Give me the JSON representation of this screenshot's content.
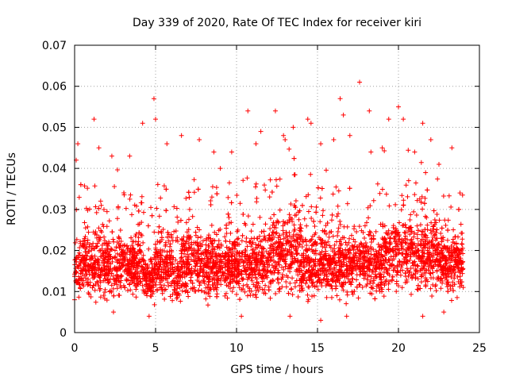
{
  "chart_data": {
    "type": "scatter",
    "title": "Day 339 of 2020, Rate Of TEC Index for receiver kiri",
    "xlabel": "GPS time / hours",
    "ylabel": "ROTI / TECUs",
    "xlim": [
      0,
      25
    ],
    "ylim": [
      0,
      0.07
    ],
    "xticks": [
      0,
      5,
      10,
      15,
      20,
      25
    ],
    "xtick_labels": [
      "0",
      "5",
      "10",
      "15",
      "20",
      "25"
    ],
    "yticks": [
      0,
      0.01,
      0.02,
      0.03,
      0.04,
      0.05,
      0.06,
      0.07
    ],
    "ytick_labels": [
      "0",
      "0.01",
      "0.02",
      "0.03",
      "0.04",
      "0.05",
      "0.06",
      "0.07"
    ],
    "grid": true,
    "marker": "+",
    "color": "#ff0000",
    "series": [
      {
        "name": "ROTI",
        "points": [
          [
            0.2,
            0.046
          ],
          [
            0.1,
            0.042
          ],
          [
            1.2,
            0.052
          ],
          [
            3.4,
            0.043
          ],
          [
            4.2,
            0.051
          ],
          [
            4.9,
            0.057
          ],
          [
            5.0,
            0.052
          ],
          [
            6.6,
            0.048
          ],
          [
            8.6,
            0.044
          ],
          [
            9.7,
            0.044
          ],
          [
            10.7,
            0.054
          ],
          [
            11.5,
            0.049
          ],
          [
            12.4,
            0.054
          ],
          [
            12.9,
            0.048
          ],
          [
            13.5,
            0.05
          ],
          [
            14.4,
            0.052
          ],
          [
            14.6,
            0.051
          ],
          [
            15.2,
            0.046
          ],
          [
            16.4,
            0.057
          ],
          [
            16.6,
            0.053
          ],
          [
            17.6,
            0.061
          ],
          [
            18.2,
            0.054
          ],
          [
            18.3,
            0.044
          ],
          [
            19.4,
            0.052
          ],
          [
            20.0,
            0.055
          ],
          [
            20.3,
            0.052
          ],
          [
            21.5,
            0.051
          ],
          [
            22.0,
            0.047
          ],
          [
            23.3,
            0.045
          ],
          [
            23.8,
            0.034
          ],
          [
            1.5,
            0.045
          ],
          [
            2.3,
            0.043
          ],
          [
            5.7,
            0.046
          ],
          [
            7.7,
            0.047
          ],
          [
            11.2,
            0.046
          ],
          [
            13.0,
            0.047
          ],
          [
            16.0,
            0.047
          ],
          [
            17.0,
            0.048
          ],
          [
            19.0,
            0.045
          ],
          [
            21.0,
            0.044
          ],
          [
            22.5,
            0.041
          ],
          [
            9.0,
            0.04
          ],
          [
            2.4,
            0.005
          ],
          [
            4.6,
            0.004
          ],
          [
            10.3,
            0.004
          ],
          [
            13.3,
            0.004
          ],
          [
            15.2,
            0.003
          ],
          [
            16.8,
            0.004
          ],
          [
            21.5,
            0.004
          ],
          [
            22.8,
            0.005
          ],
          [
            0.0,
            0.008
          ],
          [
            24.0,
            0.011
          ]
        ]
      }
    ]
  }
}
